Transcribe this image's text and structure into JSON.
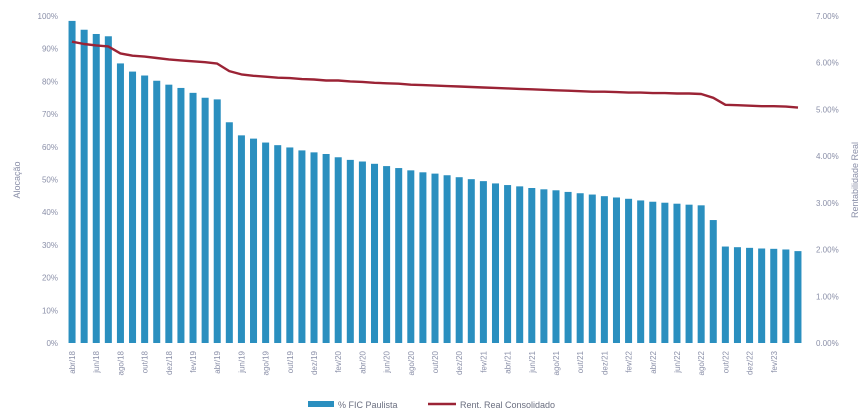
{
  "chart_data": {
    "type": "bar",
    "ylabel_left": "Alocação",
    "ylabel_right": "Rentabilidade Real",
    "ylim_left": [
      0,
      100
    ],
    "ylim_right": [
      0,
      7
    ],
    "left_ticks": [
      "0%",
      "10%",
      "20%",
      "30%",
      "40%",
      "50%",
      "60%",
      "70%",
      "80%",
      "90%",
      "100%"
    ],
    "right_ticks": [
      "0.00%",
      "1.00%",
      "2.00%",
      "3.00%",
      "4.00%",
      "5.00%",
      "6.00%",
      "7.00%"
    ],
    "x_tick_labels": [
      "abr/18",
      "jun/18",
      "ago/18",
      "out/18",
      "dez/18",
      "fev/19",
      "abr/19",
      "jun/19",
      "ago/19",
      "out/19",
      "dez/19",
      "fev/20",
      "abr/20",
      "jun/20",
      "ago/20",
      "out/20",
      "dez/20",
      "fev/21",
      "abr/21",
      "jun/21",
      "ago/21",
      "out/21",
      "dez/21",
      "fev/22",
      "abr/22",
      "jun/22",
      "ago/22",
      "out/22",
      "dez/22",
      "fev/23"
    ],
    "series": [
      {
        "name": "% FIC Paulista",
        "type": "bar",
        "axis": "left",
        "color": "#2a8fbf",
        "values": [
          98.5,
          95.8,
          94.5,
          93.8,
          85.5,
          83,
          81.8,
          80.2,
          79,
          78,
          76.5,
          75,
          74.5,
          67.5,
          63.5,
          62.5,
          61.3,
          60.5,
          59.8,
          58.9,
          58.3,
          57.8,
          56.8,
          56,
          55.5,
          54.8,
          54.1,
          53.5,
          52.8,
          52.2,
          51.8,
          51.3,
          50.7,
          50.1,
          49.5,
          48.8,
          48.3,
          47.9,
          47.4,
          47,
          46.7,
          46.2,
          45.8,
          45.4,
          44.9,
          44.5,
          44.1,
          43.6,
          43.2,
          42.9,
          42.6,
          42.3,
          42.1,
          37.6,
          29.5,
          29.3,
          29.1,
          28.9,
          28.8,
          28.6,
          28.1
        ]
      },
      {
        "name": "Rent. Real Consolidado",
        "type": "line",
        "axis": "right",
        "color": "#9b2335",
        "values": [
          6.45,
          6.4,
          6.37,
          6.35,
          6.2,
          6.15,
          6.13,
          6.1,
          6.07,
          6.05,
          6.03,
          6.01,
          5.98,
          5.82,
          5.75,
          5.72,
          5.7,
          5.68,
          5.67,
          5.65,
          5.64,
          5.62,
          5.62,
          5.6,
          5.59,
          5.57,
          5.56,
          5.55,
          5.53,
          5.52,
          5.51,
          5.5,
          5.49,
          5.48,
          5.47,
          5.46,
          5.45,
          5.44,
          5.43,
          5.42,
          5.41,
          5.4,
          5.39,
          5.38,
          5.38,
          5.37,
          5.36,
          5.36,
          5.35,
          5.35,
          5.34,
          5.34,
          5.33,
          5.25,
          5.1,
          5.09,
          5.08,
          5.07,
          5.07,
          5.06,
          5.04
        ]
      }
    ],
    "grid": false,
    "legend_position": "bottom-center"
  }
}
